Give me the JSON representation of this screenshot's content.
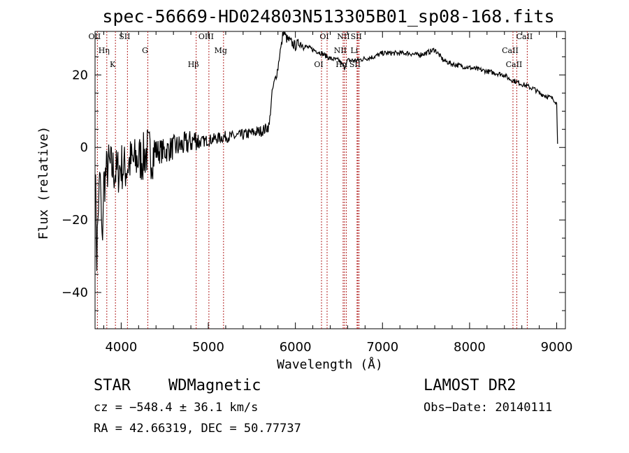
{
  "chart_data": {
    "type": "line",
    "title": "spec-56669-HD024803N513305B01_sp08-168.fits",
    "xlabel": "Wavelength (Å)",
    "ylabel": "Flux (relative)",
    "xlim": [
      3700,
      9100
    ],
    "ylim": [
      -50,
      32
    ],
    "x_ticks": [
      4000,
      5000,
      6000,
      7000,
      8000,
      9000
    ],
    "x_tick_labels": [
      "4000",
      "5000",
      "6000",
      "7000",
      "8000",
      "9000"
    ],
    "y_ticks": [
      -40,
      -20,
      0,
      20
    ],
    "y_tick_labels": [
      "−40",
      "−20",
      "0",
      "20"
    ],
    "grid": false,
    "series": [
      {
        "x": [
          3700,
          3720,
          3740,
          3760,
          3780,
          3800,
          3850,
          3900,
          3950,
          4000,
          4050,
          4100,
          4150,
          4200,
          4250,
          4300,
          4350,
          4400,
          4500,
          4600,
          4700,
          4800,
          4861,
          4900,
          5000,
          5100,
          5200,
          5300,
          5400,
          5500,
          5600,
          5650,
          5700,
          5720,
          5740,
          5760,
          5780,
          5800,
          5820,
          5840,
          5860,
          5880,
          5900,
          5950,
          6000,
          6050,
          6100,
          6200,
          6300,
          6400,
          6500,
          6563,
          6600,
          6700,
          6800,
          6900,
          7000,
          7100,
          7200,
          7300,
          7400,
          7500,
          7600,
          7700,
          7800,
          7900,
          8000,
          8100,
          8200,
          8300,
          8400,
          8450,
          8500,
          8550,
          8600,
          8650,
          8700,
          8750,
          8800,
          8850,
          8900,
          8950,
          8980,
          9000,
          9010
        ],
        "y": [
          -5,
          -30,
          -15,
          -8,
          -28,
          -10,
          -5,
          -6,
          -7,
          -5,
          -6,
          -4,
          -4,
          -3,
          -3,
          -1,
          -2,
          -1,
          -1,
          0,
          0.5,
          1.5,
          2.5,
          1.5,
          2,
          2.5,
          3,
          3,
          3.5,
          4,
          4.5,
          5,
          6,
          12,
          16,
          18,
          20,
          22,
          26,
          28,
          32,
          31,
          30,
          29,
          28,
          29,
          28,
          27,
          26,
          24.5,
          24,
          22,
          24,
          24,
          24.5,
          25,
          26,
          26,
          26,
          26,
          25.5,
          26,
          27,
          24,
          23,
          22.5,
          22,
          21.5,
          21,
          20.5,
          20,
          19,
          18.5,
          18,
          17.5,
          17,
          16.5,
          16,
          15,
          14.5,
          14,
          13.5,
          13,
          12,
          1
        ]
      }
    ],
    "lines": [
      {
        "label": "OII",
        "x": 3727
      },
      {
        "label": "Hη",
        "x": 3835
      },
      {
        "label": "K",
        "x": 3934
      },
      {
        "label": "SII",
        "x": 4072
      },
      {
        "label": "G",
        "x": 4306
      },
      {
        "label": "Hβ",
        "x": 4861
      },
      {
        "label": "OIII",
        "x": 5007
      },
      {
        "label": "Mg",
        "x": 5175
      },
      {
        "label": "OI",
        "x": 6300
      },
      {
        "label": "OI",
        "x": 6364
      },
      {
        "label": "NII",
        "x": 6548
      },
      {
        "label": "Hα",
        "x": 6563
      },
      {
        "label": "NII",
        "x": 6584
      },
      {
        "label": "Li",
        "x": 6708
      },
      {
        "label": "SII",
        "x": 6717
      },
      {
        "label": "SII",
        "x": 6731
      },
      {
        "label": "CaII",
        "x": 8498
      },
      {
        "label": "CaII",
        "x": 8542
      },
      {
        "label": "CaII",
        "x": 8662
      }
    ]
  },
  "footer": {
    "class_label": "STAR",
    "subclass_label": "WDMagnetic",
    "survey_label": "LAMOST DR2",
    "cz_text": "cz = −548.4 ± 36.1 km/s",
    "obs_date_text": "Obs−Date: 20140111",
    "coords_text": "RA =  42.66319, DEC =  50.77737"
  }
}
